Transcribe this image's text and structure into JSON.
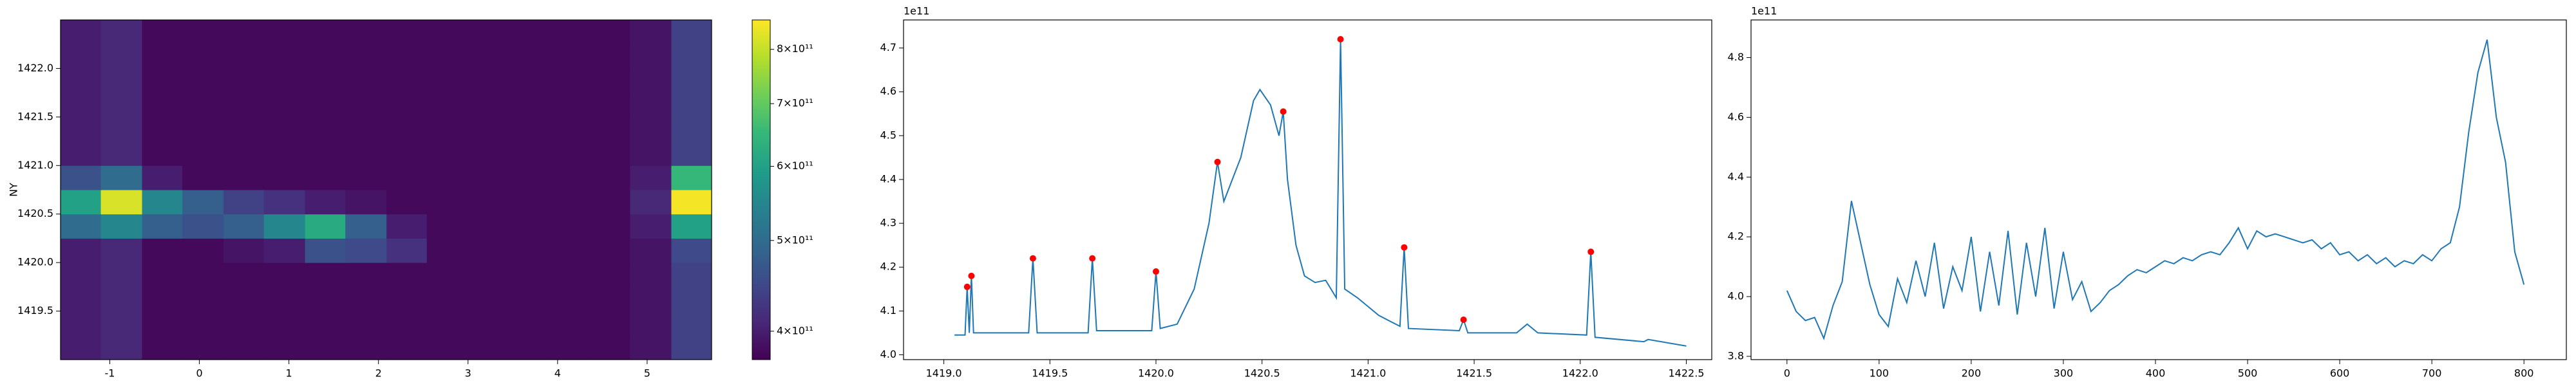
{
  "chart_data": [
    {
      "type": "heatmap",
      "ylabel": "NY",
      "colormap": "viridis",
      "xbins": [
        -1.55,
        -1.1,
        -0.64,
        -0.19,
        0.27,
        0.72,
        1.18,
        1.63,
        2.09,
        2.54,
        3.0,
        3.45,
        3.9,
        4.36,
        4.81,
        5.27,
        5.72
      ],
      "ybins": [
        1419.0,
        1419.25,
        1419.5,
        1419.75,
        1420.0,
        1420.25,
        1420.5,
        1420.75,
        1421.0,
        1421.25,
        1421.5,
        1421.75,
        1422.0,
        1422.25,
        1422.5
      ],
      "z": [
        [
          400000000000.0,
          410000000000.0,
          380000000000.0,
          380000000000.0,
          380000000000.0,
          380000000000.0,
          380000000000.0,
          380000000000.0,
          380000000000.0,
          380000000000.0,
          380000000000.0,
          380000000000.0,
          380000000000.0,
          380000000000.0,
          390000000000.0,
          440000000000.0
        ],
        [
          400000000000.0,
          410000000000.0,
          380000000000.0,
          380000000000.0,
          380000000000.0,
          380000000000.0,
          380000000000.0,
          380000000000.0,
          380000000000.0,
          380000000000.0,
          380000000000.0,
          380000000000.0,
          380000000000.0,
          380000000000.0,
          390000000000.0,
          440000000000.0
        ],
        [
          400000000000.0,
          410000000000.0,
          380000000000.0,
          380000000000.0,
          380000000000.0,
          380000000000.0,
          380000000000.0,
          380000000000.0,
          380000000000.0,
          380000000000.0,
          380000000000.0,
          380000000000.0,
          380000000000.0,
          380000000000.0,
          390000000000.0,
          440000000000.0
        ],
        [
          400000000000.0,
          410000000000.0,
          380000000000.0,
          380000000000.0,
          380000000000.0,
          380000000000.0,
          380000000000.0,
          380000000000.0,
          380000000000.0,
          380000000000.0,
          380000000000.0,
          380000000000.0,
          380000000000.0,
          380000000000.0,
          390000000000.0,
          440000000000.0
        ],
        [
          400000000000.0,
          410000000000.0,
          380000000000.0,
          380000000000.0,
          390000000000.0,
          400000000000.0,
          460000000000.0,
          450000000000.0,
          420000000000.0,
          380000000000.0,
          380000000000.0,
          380000000000.0,
          380000000000.0,
          380000000000.0,
          390000000000.0,
          450000000000.0
        ],
        [
          500000000000.0,
          550000000000.0,
          480000000000.0,
          460000000000.0,
          480000000000.0,
          550000000000.0,
          620000000000.0,
          480000000000.0,
          400000000000.0,
          380000000000.0,
          380000000000.0,
          380000000000.0,
          380000000000.0,
          380000000000.0,
          400000000000.0,
          600000000000.0
        ],
        [
          600000000000.0,
          820000000000.0,
          550000000000.0,
          480000000000.0,
          440000000000.0,
          420000000000.0,
          400000000000.0,
          390000000000.0,
          380000000000.0,
          380000000000.0,
          380000000000.0,
          380000000000.0,
          380000000000.0,
          380000000000.0,
          410000000000.0,
          850000000000.0
        ],
        [
          460000000000.0,
          500000000000.0,
          400000000000.0,
          380000000000.0,
          380000000000.0,
          380000000000.0,
          380000000000.0,
          380000000000.0,
          380000000000.0,
          380000000000.0,
          380000000000.0,
          380000000000.0,
          380000000000.0,
          380000000000.0,
          400000000000.0,
          650000000000.0
        ],
        [
          400000000000.0,
          410000000000.0,
          380000000000.0,
          380000000000.0,
          380000000000.0,
          380000000000.0,
          380000000000.0,
          380000000000.0,
          380000000000.0,
          380000000000.0,
          380000000000.0,
          380000000000.0,
          380000000000.0,
          380000000000.0,
          390000000000.0,
          440000000000.0
        ],
        [
          400000000000.0,
          410000000000.0,
          380000000000.0,
          380000000000.0,
          380000000000.0,
          380000000000.0,
          380000000000.0,
          380000000000.0,
          380000000000.0,
          380000000000.0,
          380000000000.0,
          380000000000.0,
          380000000000.0,
          380000000000.0,
          390000000000.0,
          440000000000.0
        ],
        [
          400000000000.0,
          410000000000.0,
          380000000000.0,
          380000000000.0,
          380000000000.0,
          380000000000.0,
          380000000000.0,
          380000000000.0,
          380000000000.0,
          380000000000.0,
          380000000000.0,
          380000000000.0,
          380000000000.0,
          380000000000.0,
          390000000000.0,
          440000000000.0
        ],
        [
          400000000000.0,
          410000000000.0,
          380000000000.0,
          380000000000.0,
          380000000000.0,
          380000000000.0,
          380000000000.0,
          380000000000.0,
          380000000000.0,
          380000000000.0,
          380000000000.0,
          380000000000.0,
          380000000000.0,
          380000000000.0,
          390000000000.0,
          440000000000.0
        ],
        [
          400000000000.0,
          410000000000.0,
          380000000000.0,
          380000000000.0,
          380000000000.0,
          380000000000.0,
          380000000000.0,
          380000000000.0,
          380000000000.0,
          380000000000.0,
          380000000000.0,
          380000000000.0,
          380000000000.0,
          380000000000.0,
          390000000000.0,
          440000000000.0
        ],
        [
          400000000000.0,
          410000000000.0,
          380000000000.0,
          380000000000.0,
          380000000000.0,
          380000000000.0,
          380000000000.0,
          380000000000.0,
          380000000000.0,
          380000000000.0,
          380000000000.0,
          380000000000.0,
          380000000000.0,
          380000000000.0,
          390000000000.0,
          440000000000.0
        ]
      ],
      "xlim": [
        -1.55,
        5.72
      ],
      "ylim": [
        1419.0,
        1422.5
      ],
      "xticks": [
        -1,
        0,
        1,
        2,
        3,
        4,
        5
      ],
      "yticks": [
        1419.5,
        {
          "value": 1420,
          "label": "1420.0"
        },
        1420.5,
        {
          "value": 1421,
          "label": "1421.0"
        },
        1421.5,
        {
          "value": 1422,
          "label": "1422.0"
        }
      ],
      "colorbar": {
        "scale": "log",
        "lim": [
          373000000000.0,
          860000000000.0
        ],
        "ticks": [
          {
            "value": 400000000000.0,
            "label": "4×10¹¹"
          },
          {
            "value": 500000000000.0,
            "label": "5×10¹¹"
          },
          {
            "value": 600000000000.0,
            "label": "6×10¹¹"
          },
          {
            "value": 700000000000.0,
            "label": "7×10¹¹"
          },
          {
            "value": 800000000000.0,
            "label": "8×10¹¹"
          }
        ]
      }
    },
    {
      "type": "line",
      "offset_text": "1e11",
      "color": "#1f77b4",
      "x": [
        1419.05,
        1419.1,
        1419.11,
        1419.12,
        1419.13,
        1419.14,
        1419.4,
        1419.42,
        1419.44,
        1419.68,
        1419.7,
        1419.72,
        1419.98,
        1420.0,
        1420.02,
        1420.1,
        1420.18,
        1420.25,
        1420.29,
        1420.32,
        1420.4,
        1420.46,
        1420.49,
        1420.54,
        1420.58,
        1420.6,
        1420.62,
        1420.66,
        1420.7,
        1420.75,
        1420.8,
        1420.85,
        1420.87,
        1420.89,
        1420.95,
        1421.05,
        1421.15,
        1421.17,
        1421.19,
        1421.43,
        1421.45,
        1421.47,
        1421.7,
        1421.75,
        1421.8,
        1422.03,
        1422.05,
        1422.07,
        1422.3,
        1422.32,
        1422.5
      ],
      "values": [
        4.045,
        4.045,
        4.155,
        4.05,
        4.18,
        4.05,
        4.05,
        4.22,
        4.05,
        4.05,
        4.22,
        4.055,
        4.055,
        4.19,
        4.06,
        4.07,
        4.15,
        4.3,
        4.44,
        4.35,
        4.45,
        4.58,
        4.605,
        4.57,
        4.5,
        4.555,
        4.4,
        4.25,
        4.18,
        4.165,
        4.17,
        4.13,
        4.72,
        4.15,
        4.13,
        4.09,
        4.065,
        4.245,
        4.06,
        4.055,
        4.08,
        4.05,
        4.05,
        4.07,
        4.05,
        4.045,
        4.235,
        4.04,
        4.03,
        4.035,
        4.02
      ],
      "peaks": {
        "color": "#ff0000",
        "x": [
          1419.11,
          1419.13,
          1419.42,
          1419.7,
          1420.0,
          1420.29,
          1420.6,
          1420.87,
          1421.17,
          1421.45,
          1422.05
        ],
        "values": [
          4.155,
          4.18,
          4.22,
          4.22,
          4.19,
          4.44,
          4.555,
          4.72,
          4.245,
          4.08,
          4.235
        ]
      },
      "xlim": [
        1418.81,
        1422.62
      ],
      "ylim": [
        3.989,
        4.764
      ],
      "xticks": [
        {
          "value": 1419,
          "label": "1419.0"
        },
        1419.5,
        {
          "value": 1420,
          "label": "1420.0"
        },
        1420.5,
        {
          "value": 1421,
          "label": "1421.0"
        },
        1421.5,
        {
          "value": 1422,
          "label": "1422.0"
        },
        1422.5
      ],
      "yticks": [
        {
          "value": 4,
          "label": "4.0"
        },
        4.1,
        4.2,
        4.3,
        4.4,
        4.5,
        4.6,
        4.7
      ]
    },
    {
      "type": "line",
      "offset_text": "1e11",
      "color": "#1f77b4",
      "x": [
        0,
        10,
        20,
        30,
        40,
        50,
        60,
        70,
        80,
        90,
        100,
        110,
        120,
        130,
        140,
        150,
        160,
        170,
        180,
        190,
        200,
        210,
        220,
        230,
        240,
        250,
        260,
        270,
        280,
        290,
        300,
        310,
        320,
        330,
        340,
        350,
        360,
        370,
        380,
        390,
        400,
        410,
        420,
        430,
        440,
        450,
        460,
        470,
        480,
        490,
        500,
        510,
        520,
        530,
        540,
        550,
        560,
        570,
        580,
        590,
        600,
        610,
        620,
        630,
        640,
        650,
        660,
        670,
        680,
        690,
        700,
        710,
        720,
        730,
        740,
        750,
        760,
        770,
        780,
        790,
        800
      ],
      "values": [
        4.02,
        3.95,
        3.92,
        3.93,
        3.86,
        3.97,
        4.05,
        4.32,
        4.18,
        4.04,
        3.94,
        3.9,
        4.06,
        3.98,
        4.12,
        4.0,
        4.18,
        3.96,
        4.1,
        4.02,
        4.2,
        3.95,
        4.15,
        3.97,
        4.22,
        3.94,
        4.18,
        4.0,
        4.23,
        3.96,
        4.15,
        3.99,
        4.05,
        3.95,
        3.98,
        4.02,
        4.04,
        4.07,
        4.09,
        4.08,
        4.1,
        4.12,
        4.11,
        4.13,
        4.12,
        4.14,
        4.15,
        4.14,
        4.18,
        4.23,
        4.16,
        4.22,
        4.2,
        4.21,
        4.2,
        4.19,
        4.18,
        4.19,
        4.16,
        4.18,
        4.14,
        4.15,
        4.12,
        4.14,
        4.11,
        4.13,
        4.1,
        4.12,
        4.11,
        4.14,
        4.12,
        4.16,
        4.18,
        4.3,
        4.55,
        4.75,
        4.86,
        4.6,
        4.45,
        4.15,
        4.04
      ],
      "xlim": [
        -39,
        846
      ],
      "ylim": [
        3.789,
        4.926
      ],
      "xticks": [
        0,
        100,
        200,
        300,
        400,
        500,
        600,
        700,
        800
      ],
      "yticks": [
        3.8,
        {
          "value": 4,
          "label": "4.0"
        },
        4.2,
        4.4,
        4.6,
        4.8
      ]
    }
  ]
}
